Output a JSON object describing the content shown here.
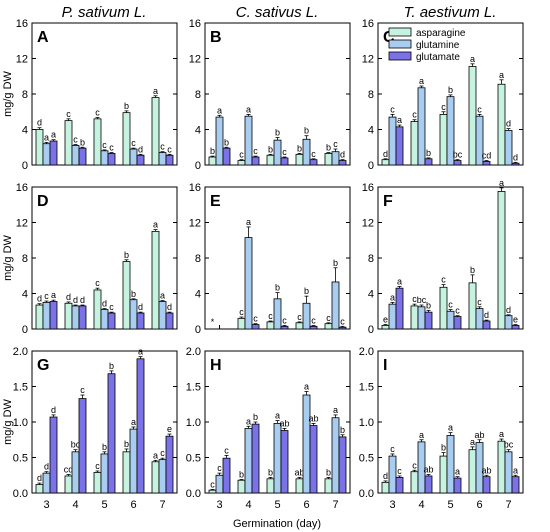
{
  "figure": {
    "ylabel": "mg/g DW",
    "xlabel": "Germination (day)",
    "columns": [
      "P. sativum L.",
      "C. sativus L.",
      "T. aestivum L."
    ],
    "series": [
      {
        "name": "asparagine",
        "color": "#c6f2e0"
      },
      {
        "name": "glutamine",
        "color": "#a9cdf0"
      },
      {
        "name": "glutamate",
        "color": "#7a72e6"
      }
    ]
  },
  "chart_data": [
    {
      "panel": "A",
      "type": "bar",
      "categories": [
        "3",
        "4",
        "5",
        "6",
        "7"
      ],
      "ylim": [
        0,
        16
      ],
      "yticks": [
        0,
        4,
        8,
        12,
        16
      ],
      "tick_decimals": 0,
      "series": [
        {
          "name": "asparagine",
          "values": [
            4.0,
            5.0,
            5.2,
            5.9,
            7.6
          ],
          "errors": [
            0.2,
            0.2,
            0.15,
            0.2,
            0.2
          ],
          "labels": [
            "d",
            "c",
            "c",
            "b",
            "a"
          ]
        },
        {
          "name": "glutamine",
          "values": [
            2.4,
            2.2,
            1.6,
            1.8,
            1.4
          ],
          "errors": [
            0.15,
            0.1,
            0.1,
            0.1,
            0.1
          ],
          "labels": [
            "a",
            "c",
            "c",
            "c",
            "c"
          ]
        },
        {
          "name": "glutamate",
          "values": [
            2.7,
            1.9,
            1.3,
            1.1,
            1.1
          ],
          "errors": [
            0.15,
            0.1,
            0.1,
            0.1,
            0.1
          ],
          "labels": [
            "a",
            "b",
            "c",
            "d",
            "c"
          ]
        }
      ]
    },
    {
      "panel": "B",
      "type": "bar",
      "categories": [
        "3",
        "4",
        "5",
        "6",
        "7"
      ],
      "ylim": [
        0,
        16
      ],
      "yticks": [
        0,
        4,
        8,
        12,
        16
      ],
      "tick_decimals": 0,
      "series": [
        {
          "name": "asparagine",
          "values": [
            0.9,
            0.5,
            1.1,
            1.2,
            1.3
          ],
          "errors": [
            0.1,
            0.1,
            0.1,
            0.1,
            0.1
          ],
          "labels": [
            "b",
            "c",
            "b",
            "b",
            "b"
          ]
        },
        {
          "name": "glutamine",
          "values": [
            5.4,
            5.5,
            2.8,
            2.9,
            1.5
          ],
          "errors": [
            0.2,
            0.2,
            0.3,
            0.4,
            0.3
          ],
          "labels": [
            "a",
            "a",
            "b",
            "b",
            "c"
          ]
        },
        {
          "name": "glutamate",
          "values": [
            1.9,
            0.9,
            0.8,
            0.6,
            0.5
          ],
          "errors": [
            0.1,
            0.1,
            0.1,
            0.1,
            0.1
          ],
          "labels": [
            "b",
            "c",
            "c",
            "c",
            "d"
          ]
        }
      ]
    },
    {
      "panel": "C",
      "type": "bar",
      "categories": [
        "3",
        "4",
        "5",
        "6",
        "7"
      ],
      "ylim": [
        0,
        16
      ],
      "yticks": [
        0,
        4,
        8,
        12,
        16
      ],
      "tick_decimals": 0,
      "series": [
        {
          "name": "asparagine",
          "values": [
            0.6,
            4.9,
            5.7,
            11.1,
            9.1
          ],
          "errors": [
            0.1,
            0.2,
            0.3,
            0.3,
            0.5
          ],
          "labels": [
            "d",
            "c",
            "c",
            "a",
            "a"
          ]
        },
        {
          "name": "glutamine",
          "values": [
            5.4,
            8.7,
            7.7,
            5.5,
            3.9
          ],
          "errors": [
            0.3,
            0.2,
            0.2,
            0.2,
            0.2
          ],
          "labels": [
            "c",
            "a",
            "b",
            "c",
            "d"
          ]
        },
        {
          "name": "glutamate",
          "values": [
            4.3,
            0.7,
            0.5,
            0.4,
            0.2
          ],
          "errors": [
            0.2,
            0.1,
            0.1,
            0.1,
            0.1
          ],
          "labels": [
            "a",
            "b",
            "bc",
            "cd",
            "d"
          ]
        }
      ]
    },
    {
      "panel": "D",
      "type": "bar",
      "categories": [
        "3",
        "4",
        "5",
        "6",
        "7"
      ],
      "ylim": [
        0,
        16
      ],
      "yticks": [
        0,
        4,
        8,
        12,
        16
      ],
      "tick_decimals": 0,
      "series": [
        {
          "name": "asparagine",
          "values": [
            2.7,
            2.9,
            4.4,
            7.6,
            11.0
          ],
          "errors": [
            0.15,
            0.15,
            0.2,
            0.2,
            0.2
          ],
          "labels": [
            "d",
            "d",
            "c",
            "b",
            "a"
          ]
        },
        {
          "name": "glutamine",
          "values": [
            3.0,
            2.6,
            2.2,
            3.3,
            3.1
          ],
          "errors": [
            0.15,
            0.1,
            0.1,
            0.1,
            0.1
          ],
          "labels": [
            "c",
            "d",
            "d",
            "b",
            "a"
          ]
        },
        {
          "name": "glutamate",
          "values": [
            3.1,
            2.6,
            1.8,
            1.8,
            1.8
          ],
          "errors": [
            0.15,
            0.1,
            0.1,
            0.1,
            0.1
          ],
          "labels": [
            "a",
            "d",
            "c",
            "d",
            "d"
          ]
        }
      ]
    },
    {
      "panel": "E",
      "type": "bar",
      "categories": [
        "3",
        "4",
        "5",
        "6",
        "7"
      ],
      "ylim": [
        0,
        16
      ],
      "yticks": [
        0,
        4,
        8,
        12,
        16
      ],
      "tick_decimals": 0,
      "series": [
        {
          "name": "asparagine",
          "values": [
            0,
            1.2,
            0.8,
            0.7,
            0.6
          ],
          "errors": [
            0,
            0.15,
            0.1,
            0.1,
            0.1
          ],
          "labels": [
            "*",
            "c",
            "c",
            "c",
            "c"
          ]
        },
        {
          "name": "glutamine",
          "values": [
            0,
            10.3,
            3.4,
            2.9,
            5.3
          ],
          "errors": [
            0,
            1.2,
            0.7,
            0.8,
            1.6
          ],
          "labels": [
            "",
            "a",
            "b",
            "b",
            "b"
          ]
        },
        {
          "name": "glutamate",
          "values": [
            0,
            0.5,
            0.3,
            0.3,
            0.2
          ],
          "errors": [
            0,
            0.1,
            0.1,
            0.1,
            0.1
          ],
          "labels": [
            "",
            "c",
            "c",
            "c",
            "c"
          ]
        }
      ]
    },
    {
      "panel": "F",
      "type": "bar",
      "categories": [
        "3",
        "4",
        "5",
        "6",
        "7"
      ],
      "ylim": [
        0,
        16
      ],
      "yticks": [
        0,
        4,
        8,
        12,
        16
      ],
      "tick_decimals": 0,
      "series": [
        {
          "name": "asparagine",
          "values": [
            0.4,
            2.6,
            4.7,
            5.2,
            15.5
          ],
          "errors": [
            0.1,
            0.2,
            0.3,
            0.9,
            0.4
          ],
          "labels": [
            "e",
            "c",
            "c",
            "b",
            "a"
          ]
        },
        {
          "name": "glutamine",
          "values": [
            2.8,
            2.5,
            2.0,
            2.3,
            1.5
          ],
          "errors": [
            0.2,
            0.2,
            0.2,
            0.2,
            0.1
          ],
          "labels": [
            "a",
            "bc",
            "c",
            "c",
            "d"
          ]
        },
        {
          "name": "glutamate",
          "values": [
            4.6,
            1.9,
            1.4,
            0.9,
            0.4
          ],
          "errors": [
            0.2,
            0.2,
            0.1,
            0.1,
            0.1
          ],
          "labels": [
            "a",
            "b",
            "c",
            "d",
            "e"
          ]
        }
      ]
    },
    {
      "panel": "G",
      "type": "bar",
      "categories": [
        "3",
        "4",
        "5",
        "6",
        "7"
      ],
      "ylim": [
        0,
        2
      ],
      "yticks": [
        0,
        0.5,
        1,
        1.5,
        2
      ],
      "tick_decimals": 1,
      "series": [
        {
          "name": "asparagine",
          "values": [
            0.12,
            0.24,
            0.29,
            0.58,
            0.44
          ],
          "errors": [
            0.02,
            0.02,
            0.02,
            0.04,
            0.02
          ],
          "labels": [
            "d",
            "cd",
            "c",
            "b",
            "a"
          ]
        },
        {
          "name": "glutamine",
          "values": [
            0.28,
            0.58,
            0.55,
            0.9,
            0.47
          ],
          "errors": [
            0.02,
            0.03,
            0.03,
            0.03,
            0.02
          ],
          "labels": [
            "d",
            "bc",
            "b",
            "a",
            "c"
          ]
        },
        {
          "name": "glutamate",
          "values": [
            1.07,
            1.33,
            1.68,
            1.89,
            0.8
          ],
          "errors": [
            0.03,
            0.05,
            0.04,
            0.03,
            0.03
          ],
          "labels": [
            "d",
            "c",
            "b",
            "a",
            "e"
          ]
        }
      ]
    },
    {
      "panel": "H",
      "type": "bar",
      "categories": [
        "3",
        "4",
        "5",
        "6",
        "7"
      ],
      "ylim": [
        0,
        2
      ],
      "yticks": [
        0,
        0.5,
        1,
        1.5,
        2
      ],
      "tick_decimals": 1,
      "series": [
        {
          "name": "asparagine",
          "values": [
            0.04,
            0.18,
            0.2,
            0.2,
            0.2
          ],
          "errors": [
            0.01,
            0.01,
            0.02,
            0.02,
            0.02
          ],
          "labels": [
            "c",
            "b",
            "b",
            "ab",
            "b"
          ]
        },
        {
          "name": "glutamine",
          "values": [
            0.25,
            0.91,
            0.98,
            1.38,
            1.06
          ],
          "errors": [
            0.03,
            0.03,
            0.04,
            0.05,
            0.04
          ],
          "labels": [
            "c",
            "a",
            "a",
            "a",
            "a"
          ]
        },
        {
          "name": "glutamate",
          "values": [
            0.49,
            0.97,
            0.88,
            0.95,
            0.79
          ],
          "errors": [
            0.04,
            0.03,
            0.03,
            0.03,
            0.03
          ],
          "labels": [
            "c",
            "b",
            "ab",
            "ab",
            "b"
          ]
        }
      ]
    },
    {
      "panel": "I",
      "type": "bar",
      "categories": [
        "3",
        "4",
        "5",
        "6",
        "7"
      ],
      "ylim": [
        0,
        2
      ],
      "yticks": [
        0,
        0.5,
        1,
        1.5,
        2
      ],
      "tick_decimals": 1,
      "series": [
        {
          "name": "asparagine",
          "values": [
            0.15,
            0.3,
            0.52,
            0.61,
            0.73
          ],
          "errors": [
            0.02,
            0.02,
            0.05,
            0.04,
            0.03
          ],
          "labels": [
            "d",
            "c",
            "b",
            "a",
            "a"
          ]
        },
        {
          "name": "glutamine",
          "values": [
            0.52,
            0.72,
            0.81,
            0.71,
            0.58
          ],
          "errors": [
            0.03,
            0.03,
            0.04,
            0.04,
            0.03
          ],
          "labels": [
            "c",
            "a",
            "a",
            "ab",
            "bc"
          ]
        },
        {
          "name": "glutamate",
          "values": [
            0.22,
            0.24,
            0.21,
            0.23,
            0.23
          ],
          "errors": [
            0.02,
            0.02,
            0.02,
            0.02,
            0.02
          ],
          "labels": [
            "c",
            "ab",
            "a",
            "ab",
            "a"
          ]
        }
      ]
    }
  ]
}
